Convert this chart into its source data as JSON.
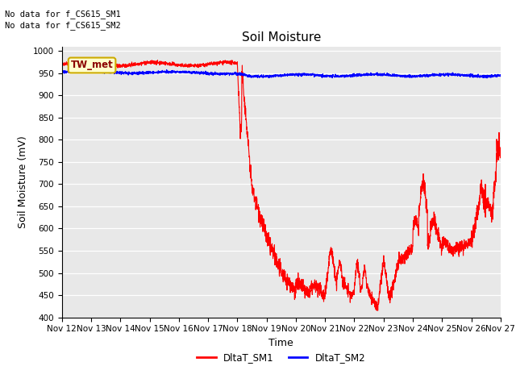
{
  "title": "Soil Moisture",
  "xlabel": "Time",
  "ylabel": "Soil Moisture (mV)",
  "ylim": [
    400,
    1010
  ],
  "yticks": [
    400,
    450,
    500,
    550,
    600,
    650,
    700,
    750,
    800,
    850,
    900,
    950,
    1000
  ],
  "xticklabels": [
    "Nov 12",
    "Nov 13",
    "Nov 14",
    "Nov 15",
    "Nov 16",
    "Nov 17",
    "Nov 18",
    "Nov 19",
    "Nov 20",
    "Nov 21",
    "Nov 22",
    "Nov 23",
    "Nov 24",
    "Nov 25",
    "Nov 26",
    "Nov 27"
  ],
  "annotations": [
    "No data for f_CS615_SM1",
    "No data for f_CS615_SM2"
  ],
  "legend_box_label": "TW_met",
  "legend_box_color": "#ffffcc",
  "legend_box_edge": "#ccaa00",
  "background_color": "#e8e8e8",
  "line1_color": "#ff0000",
  "line2_color": "#0000ff",
  "line1_label": "DltaT_SM1",
  "line2_label": "DltaT_SM2",
  "title_fontsize": 11,
  "axis_label_fontsize": 9,
  "tick_fontsize": 7.5,
  "fig_width": 6.4,
  "fig_height": 4.8,
  "fig_dpi": 100
}
